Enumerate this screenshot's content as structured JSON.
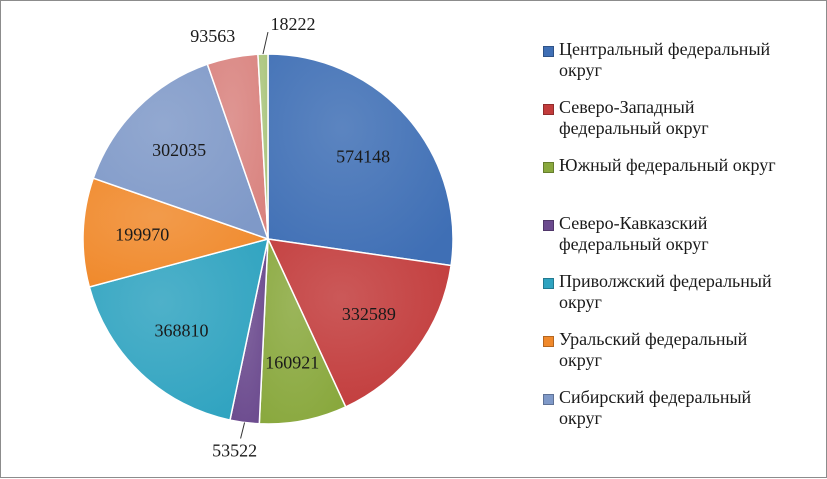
{
  "chart_data": {
    "type": "pie",
    "title": "",
    "categories": [
      "Центральный федеральный округ",
      "Северо-Западный федеральный округ",
      "Южный федеральный округ",
      "Северо-Кавказский федеральный округ",
      "Приволжский федеральный округ",
      "Уральский федеральный округ",
      "Сибирский федеральный округ",
      "",
      ""
    ],
    "values": [
      574148,
      332589,
      160921,
      53522,
      368810,
      199970,
      302035,
      93563,
      18222
    ],
    "value_labels": [
      "574148",
      "332589",
      "160921",
      "53522",
      "368810",
      "199970",
      "302035",
      "93563",
      "18222"
    ],
    "colors": [
      "#3f6fb5",
      "#c23b3b",
      "#89a83d",
      "#6b4a8e",
      "#2fa3c0",
      "#f0892b",
      "#7f99c8",
      "#d9837f",
      "#a9c47b"
    ],
    "legend_position": "right",
    "legend_items": [
      {
        "line1": "Центральный федеральный",
        "line2": "округ"
      },
      {
        "line1": "Северо-Западный",
        "line2": "федеральный округ"
      },
      {
        "line1": "Южный федеральный округ",
        "line2": ""
      },
      {
        "line1": "Северо-Кавказский",
        "line2": "федеральный округ"
      },
      {
        "line1": "Приволжский федеральный",
        "line2": "округ"
      },
      {
        "line1": "Уральский федеральный",
        "line2": "округ"
      },
      {
        "line1": "Сибирский федеральный",
        "line2": "округ"
      }
    ]
  }
}
